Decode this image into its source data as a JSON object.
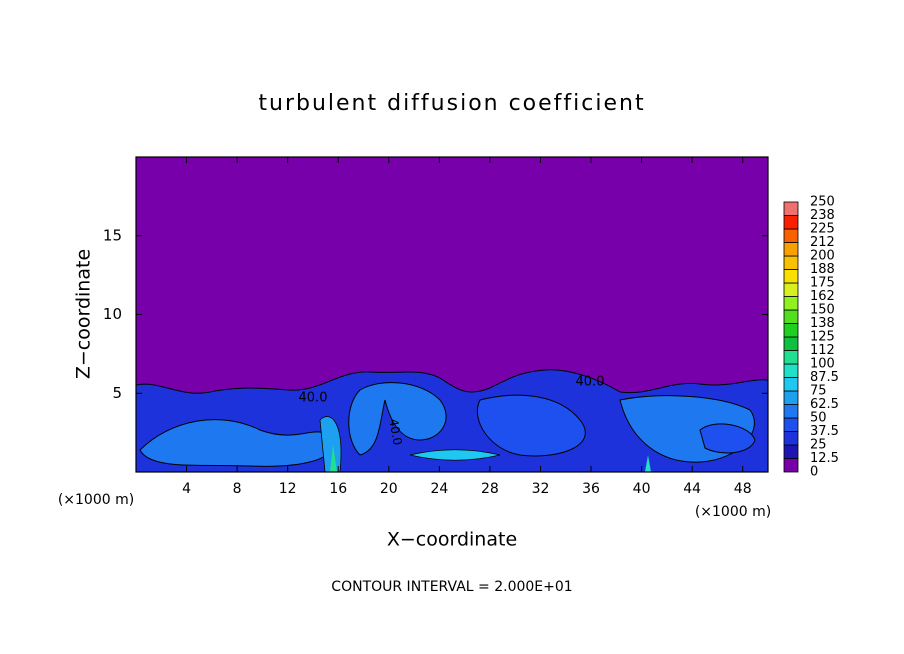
{
  "chart_data": {
    "type": "contour",
    "title": "turbulent diffusion coefficient",
    "x_label": "X−coordinate",
    "y_label": "Z−coordinate",
    "x_unit_label": "(×1000 m)",
    "footer": "CONTOUR INTERVAL = 2.000E+01",
    "contour_labels": [
      "40.0",
      "40.0",
      "40.0"
    ],
    "xlim": [
      0,
      50
    ],
    "xticks": [
      4,
      8,
      12,
      16,
      20,
      24,
      28,
      32,
      36,
      40,
      44,
      48
    ],
    "ylim": [
      0,
      20
    ],
    "yticks": [
      5,
      10,
      15
    ],
    "colorbar": {
      "levels": [
        0,
        12.5,
        25,
        37.5,
        50,
        62.5,
        75,
        87.5,
        100,
        {
          "value": 112.5,
          "label": "112"
        },
        125,
        {
          "value": 137.5,
          "label": "138"
        },
        150,
        {
          "value": 162.5,
          "label": "162"
        },
        175,
        {
          "value": 187.5,
          "label": "188"
        },
        200,
        {
          "value": 212.5,
          "label": "212"
        },
        225,
        {
          "value": 237.5,
          "label": "238"
        },
        250
      ],
      "colors": [
        "#7800aa",
        "#1e14b4",
        "#1e32dc",
        "#1e50f0",
        "#1e78f0",
        "#1ea0f0",
        "#1ec8f0",
        "#20e0c8",
        "#20e090",
        "#10c040",
        "#20d020",
        "#50e020",
        "#90f020",
        "#d8f020",
        "#f8e000",
        "#f8c000",
        "#f8a000",
        "#f86000",
        "#f82000",
        "#f07070"
      ]
    }
  }
}
